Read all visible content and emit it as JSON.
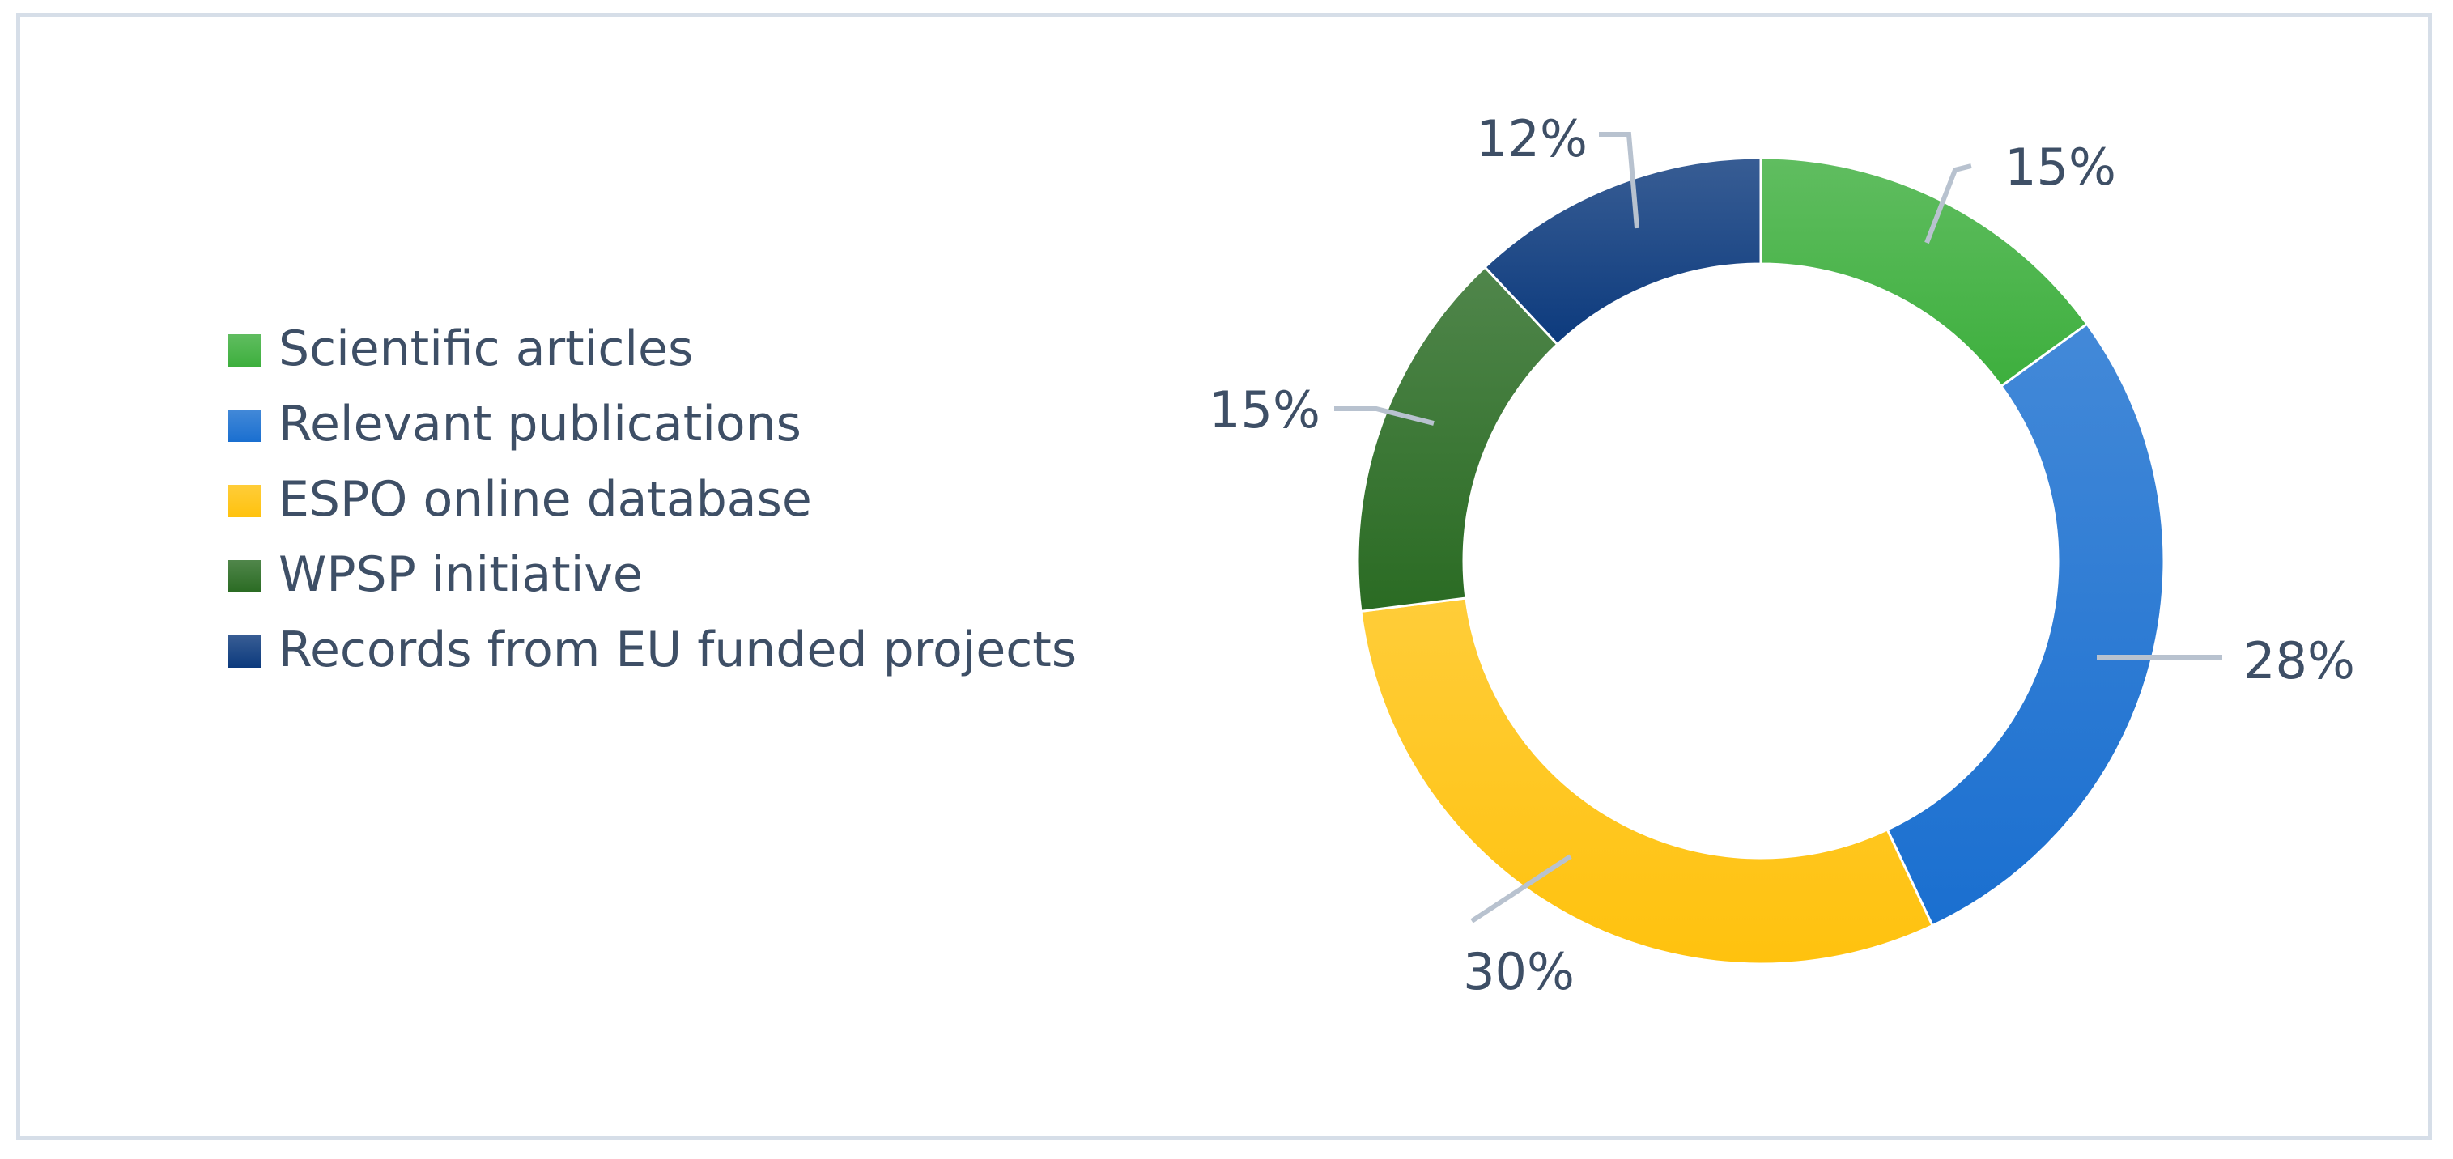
{
  "chart_data": {
    "type": "pie",
    "variant": "doughnut",
    "title": "",
    "categories": [
      "Scientific articles",
      "Relevant publications",
      "ESPO online database",
      "WPSP initiative",
      "Records from EU funded projects"
    ],
    "values": [
      15,
      28,
      30,
      15,
      12
    ],
    "labels": [
      "15%",
      "28%",
      "30%",
      "15%",
      "12%"
    ],
    "colors": [
      "#3daf3d",
      "#1a6fd0",
      "#ffc20e",
      "#2a6b23",
      "#0c3a7d"
    ],
    "legend_position": "left",
    "start_position": "top",
    "direction": "clockwise"
  }
}
